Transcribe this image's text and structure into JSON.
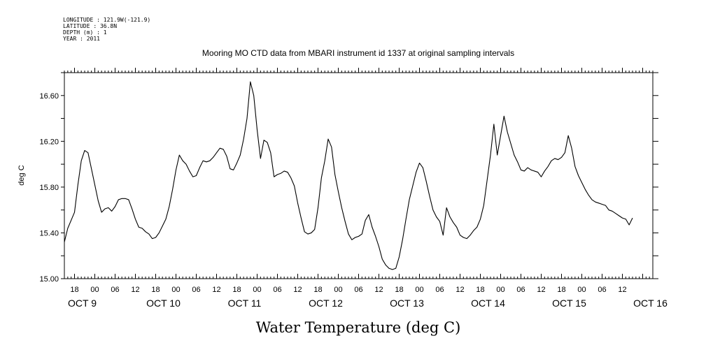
{
  "meta": {
    "longitude": "LONGITUDE : 121.9W(-121.9)",
    "latitude": "LATITUDE : 36.8N",
    "depth": "DEPTH (m) : 1",
    "year": "YEAR : 2011"
  },
  "chart_data": {
    "type": "line",
    "title": "Mooring MO CTD data from MBARI instrument id 1337 at original sampling intervals",
    "xlabel": "Water Temperature (deg C)",
    "ylabel": "deg C",
    "ylim": [
      15.0,
      16.8
    ],
    "y_ticks": [
      "15.00",
      "15.40",
      "15.80",
      "16.20",
      "16.60"
    ],
    "xlim_hours": [
      -9,
      165
    ],
    "hour_labels": [
      "18",
      "00",
      "06",
      "12",
      "18",
      "00",
      "06",
      "12",
      "18",
      "00",
      "06",
      "12",
      "18",
      "00",
      "06",
      "12",
      "18",
      "00",
      "06",
      "12",
      "18",
      "00",
      "06",
      "12",
      "18",
      "00",
      "06",
      "12"
    ],
    "date_labels": [
      "OCT  9",
      "OCT 10",
      "OCT 11",
      "OCT 12",
      "OCT 13",
      "OCT 14",
      "OCT 15",
      "OCT 16"
    ],
    "grid": false,
    "series": [
      {
        "values": [
          [
            -9.0,
            15.32
          ],
          [
            -8.0,
            15.44
          ],
          [
            -7.0,
            15.51
          ],
          [
            -6.0,
            15.58
          ],
          [
            -5.0,
            15.82
          ],
          [
            -4.0,
            16.03
          ],
          [
            -3.0,
            16.12
          ],
          [
            -2.0,
            16.1
          ],
          [
            -1.0,
            15.96
          ],
          [
            0.0,
            15.82
          ],
          [
            1.0,
            15.68
          ],
          [
            2.0,
            15.58
          ],
          [
            3.0,
            15.61
          ],
          [
            4.0,
            15.62
          ],
          [
            5.0,
            15.59
          ],
          [
            6.0,
            15.63
          ],
          [
            7.0,
            15.69
          ],
          [
            8.0,
            15.7
          ],
          [
            9.0,
            15.7
          ],
          [
            10.0,
            15.69
          ],
          [
            11.0,
            15.61
          ],
          [
            12.0,
            15.52
          ],
          [
            13.0,
            15.45
          ],
          [
            14.0,
            15.44
          ],
          [
            15.0,
            15.41
          ],
          [
            16.0,
            15.39
          ],
          [
            17.0,
            15.35
          ],
          [
            18.0,
            15.36
          ],
          [
            19.0,
            15.4
          ],
          [
            20.0,
            15.46
          ],
          [
            21.0,
            15.52
          ],
          [
            22.0,
            15.63
          ],
          [
            23.0,
            15.78
          ],
          [
            24.0,
            15.95
          ],
          [
            25.0,
            16.08
          ],
          [
            26.0,
            16.03
          ],
          [
            27.0,
            16.0
          ],
          [
            28.0,
            15.94
          ],
          [
            29.0,
            15.89
          ],
          [
            30.0,
            15.9
          ],
          [
            31.0,
            15.97
          ],
          [
            32.0,
            16.03
          ],
          [
            33.0,
            16.02
          ],
          [
            34.0,
            16.03
          ],
          [
            35.0,
            16.06
          ],
          [
            36.0,
            16.1
          ],
          [
            37.0,
            16.14
          ],
          [
            38.0,
            16.13
          ],
          [
            39.0,
            16.07
          ],
          [
            40.0,
            15.96
          ],
          [
            41.0,
            15.95
          ],
          [
            42.0,
            16.01
          ],
          [
            43.0,
            16.08
          ],
          [
            44.0,
            16.22
          ],
          [
            45.0,
            16.4
          ],
          [
            46.0,
            16.72
          ],
          [
            47.0,
            16.6
          ],
          [
            48.0,
            16.3
          ],
          [
            49.0,
            16.05
          ],
          [
            50.0,
            16.21
          ],
          [
            51.0,
            16.19
          ],
          [
            52.0,
            16.1
          ],
          [
            53.0,
            15.89
          ],
          [
            54.0,
            15.91
          ],
          [
            55.0,
            15.92
          ],
          [
            56.0,
            15.94
          ],
          [
            57.0,
            15.93
          ],
          [
            58.0,
            15.88
          ],
          [
            59.0,
            15.81
          ],
          [
            60.0,
            15.66
          ],
          [
            61.0,
            15.53
          ],
          [
            62.0,
            15.41
          ],
          [
            63.0,
            15.39
          ],
          [
            64.0,
            15.4
          ],
          [
            65.0,
            15.43
          ],
          [
            66.0,
            15.62
          ],
          [
            67.0,
            15.88
          ],
          [
            68.0,
            16.03
          ],
          [
            69.0,
            16.22
          ],
          [
            70.0,
            16.15
          ],
          [
            71.0,
            15.91
          ],
          [
            72.0,
            15.76
          ],
          [
            73.0,
            15.62
          ],
          [
            74.0,
            15.5
          ],
          [
            75.0,
            15.39
          ],
          [
            76.0,
            15.34
          ],
          [
            77.0,
            15.36
          ],
          [
            78.0,
            15.37
          ],
          [
            79.0,
            15.39
          ],
          [
            80.0,
            15.51
          ],
          [
            81.0,
            15.56
          ],
          [
            82.0,
            15.45
          ],
          [
            83.0,
            15.37
          ],
          [
            84.0,
            15.28
          ],
          [
            85.0,
            15.17
          ],
          [
            86.0,
            15.12
          ],
          [
            87.0,
            15.09
          ],
          [
            88.0,
            15.08
          ],
          [
            89.0,
            15.09
          ],
          [
            90.0,
            15.19
          ],
          [
            91.0,
            15.34
          ],
          [
            92.0,
            15.52
          ],
          [
            93.0,
            15.69
          ],
          [
            94.0,
            15.81
          ],
          [
            95.0,
            15.93
          ],
          [
            96.0,
            16.01
          ],
          [
            97.0,
            15.97
          ],
          [
            98.0,
            15.85
          ],
          [
            99.0,
            15.72
          ],
          [
            100.0,
            15.6
          ],
          [
            101.0,
            15.54
          ],
          [
            102.0,
            15.5
          ],
          [
            103.0,
            15.38
          ],
          [
            104.0,
            15.62
          ],
          [
            105.0,
            15.54
          ],
          [
            106.0,
            15.49
          ],
          [
            107.0,
            15.45
          ],
          [
            108.0,
            15.38
          ],
          [
            109.0,
            15.36
          ],
          [
            110.0,
            15.35
          ],
          [
            111.0,
            15.38
          ],
          [
            112.0,
            15.42
          ],
          [
            113.0,
            15.45
          ],
          [
            114.0,
            15.52
          ],
          [
            115.0,
            15.64
          ],
          [
            116.0,
            15.86
          ],
          [
            117.0,
            16.08
          ],
          [
            118.0,
            16.35
          ],
          [
            119.0,
            16.08
          ],
          [
            120.0,
            16.25
          ],
          [
            121.0,
            16.42
          ],
          [
            122.0,
            16.28
          ],
          [
            123.0,
            16.18
          ],
          [
            124.0,
            16.08
          ],
          [
            125.0,
            16.02
          ],
          [
            126.0,
            15.95
          ],
          [
            127.0,
            15.94
          ],
          [
            128.0,
            15.97
          ],
          [
            129.0,
            15.95
          ],
          [
            130.0,
            15.94
          ],
          [
            131.0,
            15.93
          ],
          [
            132.0,
            15.89
          ],
          [
            133.0,
            15.94
          ],
          [
            134.0,
            15.98
          ],
          [
            135.0,
            16.03
          ],
          [
            136.0,
            16.05
          ],
          [
            137.0,
            16.04
          ],
          [
            138.0,
            16.06
          ],
          [
            139.0,
            16.1
          ],
          [
            140.0,
            16.25
          ],
          [
            141.0,
            16.14
          ],
          [
            142.0,
            15.98
          ],
          [
            143.0,
            15.9
          ],
          [
            144.0,
            15.84
          ],
          [
            145.0,
            15.78
          ],
          [
            146.0,
            15.73
          ],
          [
            147.0,
            15.69
          ],
          [
            148.0,
            15.67
          ],
          [
            149.0,
            15.66
          ],
          [
            150.0,
            15.65
          ],
          [
            151.0,
            15.64
          ],
          [
            152.0,
            15.6
          ],
          [
            153.0,
            15.59
          ],
          [
            154.0,
            15.57
          ],
          [
            155.0,
            15.55
          ],
          [
            156.0,
            15.53
          ],
          [
            157.0,
            15.52
          ],
          [
            158.0,
            15.47
          ],
          [
            159.0,
            15.53
          ]
        ]
      }
    ]
  }
}
